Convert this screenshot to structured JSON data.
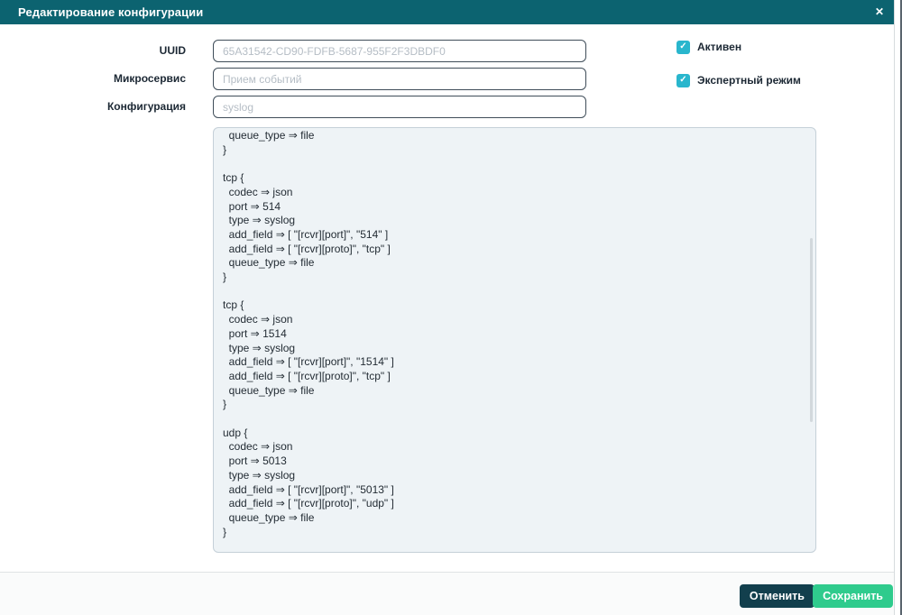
{
  "modal": {
    "title": "Редактирование конфигурации"
  },
  "icons": {
    "close": "✕",
    "check": "✓"
  },
  "form": {
    "fields": [
      {
        "label": "UUID",
        "value": "",
        "placeholder": "65A31542-CD90-FDFB-5687-955F2F3DBDF0"
      },
      {
        "label": "Микросервис",
        "value": "",
        "placeholder": "Прием событий"
      },
      {
        "label": "Конфигурация",
        "value": "",
        "placeholder": "syslog"
      }
    ],
    "checkboxes": [
      {
        "label": "Активен",
        "checked": true
      },
      {
        "label": "Экспертный режим",
        "checked": true
      }
    ]
  },
  "editor": {
    "content": "  queue_type ⇒ file\n}\n\ntcp {\n  codec ⇒ json\n  port ⇒ 514\n  type ⇒ syslog\n  add_field ⇒ [ \"[rcvr][port]\", \"514\" ]\n  add_field ⇒ [ \"[rcvr][proto]\", \"tcp\" ]\n  queue_type ⇒ file\n}\n\ntcp {\n  codec ⇒ json\n  port ⇒ 1514\n  type ⇒ syslog\n  add_field ⇒ [ \"[rcvr][port]\", \"1514\" ]\n  add_field ⇒ [ \"[rcvr][proto]\", \"tcp\" ]\n  queue_type ⇒ file\n}\n\nudp {\n  codec ⇒ json\n  port ⇒ 5013\n  type ⇒ syslog\n  add_field ⇒ [ \"[rcvr][port]\", \"5013\" ]\n  add_field ⇒ [ \"[rcvr][proto]\", \"udp\" ]\n  queue_type ⇒ file\n}"
  },
  "footer": {
    "cancel_label": "Отменить",
    "save_label": "Сохранить"
  },
  "colors": {
    "header_bg": "#0c6370",
    "checkbox_accent": "#29b6cd",
    "save_button_bg": "#2fcb8d",
    "cancel_button_bg": "#123f4d",
    "editor_bg": "#eef3f6"
  }
}
